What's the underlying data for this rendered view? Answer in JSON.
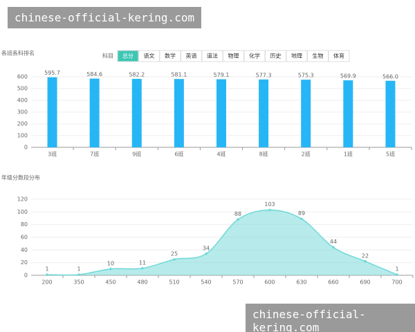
{
  "watermarks": [
    "chinese-official-kering.com",
    "chinese-official-kering.com"
  ],
  "tabs": {
    "label": "科目",
    "items": [
      "总分",
      "语文",
      "数学",
      "英语",
      "道法",
      "物理",
      "化学",
      "历史",
      "地理",
      "生物",
      "体育"
    ],
    "active": 0
  },
  "chart_data": [
    {
      "type": "bar",
      "title": "各班各科排名",
      "categories": [
        "3班",
        "7班",
        "9班",
        "6班",
        "4班",
        "8班",
        "2班",
        "1班",
        "5班"
      ],
      "values": [
        595.7,
        584.6,
        582.2,
        581.1,
        579.1,
        577.3,
        575.3,
        569.9,
        566.0
      ],
      "value_labels": [
        "595.7",
        "584.6",
        "582.2",
        "581.1",
        "579.1",
        "577.3",
        "575.3",
        "569.9",
        "566.0"
      ],
      "color": "#27b6f5",
      "ylim": [
        0,
        600
      ],
      "yticks": [
        0,
        100,
        200,
        300,
        400,
        500,
        600
      ],
      "grid": true
    },
    {
      "type": "area",
      "title": "年级分数段分布",
      "categories": [
        "200",
        "350",
        "450",
        "480",
        "510",
        "540",
        "570",
        "600",
        "630",
        "660",
        "690",
        "700"
      ],
      "values": [
        1,
        1,
        10,
        11,
        25,
        34,
        88,
        103,
        89,
        44,
        22,
        1
      ],
      "color": "#6fd8d8",
      "ylim": [
        0,
        120
      ],
      "yticks": [
        0,
        20,
        40,
        60,
        80,
        100,
        120
      ],
      "grid": true
    }
  ]
}
